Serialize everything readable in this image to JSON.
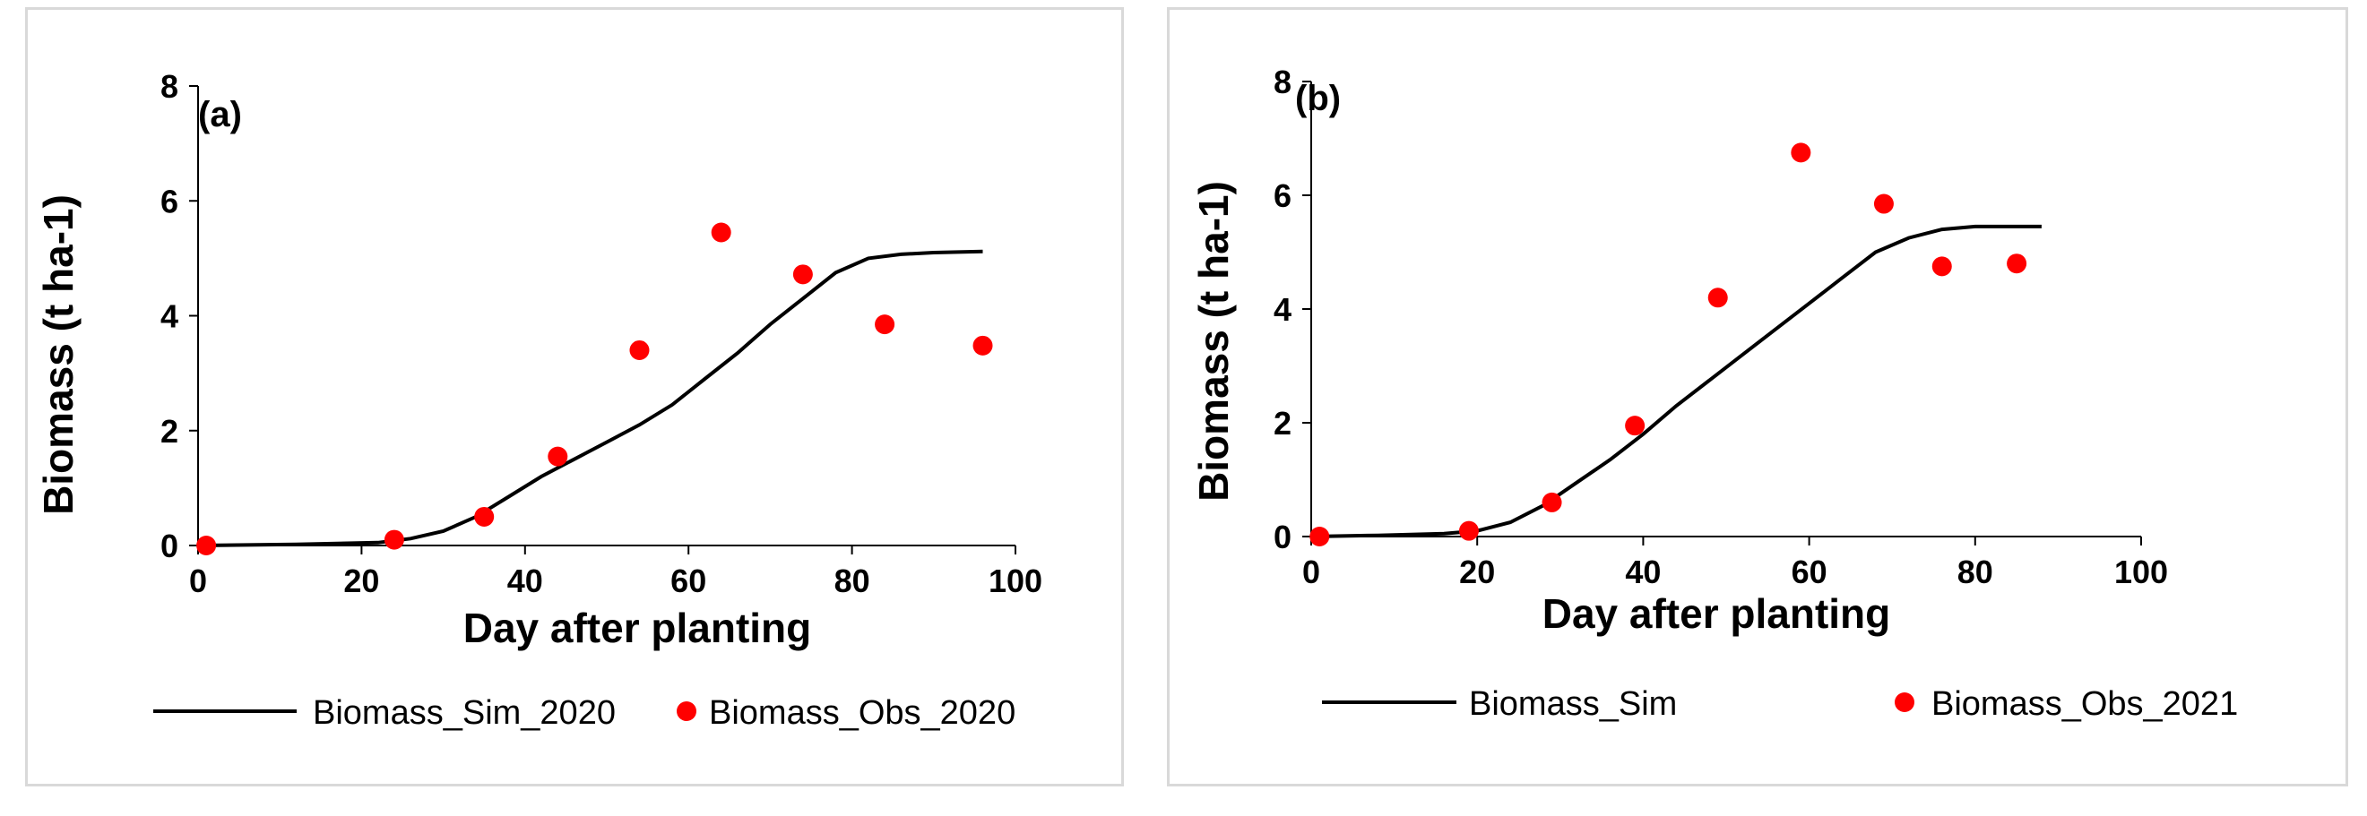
{
  "chart_data": [
    {
      "type": "line",
      "panel_label": "(a)",
      "xlabel": "Day after planting",
      "ylabel": "Biomass (t ha-1)",
      "xlim": [
        0,
        100
      ],
      "ylim": [
        0,
        8
      ],
      "xticks": [
        0,
        20,
        40,
        60,
        80,
        100
      ],
      "yticks": [
        0,
        2,
        4,
        6,
        8
      ],
      "grid": false,
      "legend_position": "bottom",
      "series": [
        {
          "name": "Biomass_Sim_2020",
          "kind": "line",
          "color": "#000000",
          "x": [
            0,
            12,
            22,
            26,
            30,
            34,
            38,
            42,
            46,
            50,
            54,
            58,
            62,
            66,
            70,
            74,
            78,
            82,
            86,
            90,
            96
          ],
          "y": [
            0,
            0.02,
            0.05,
            0.12,
            0.25,
            0.5,
            0.85,
            1.2,
            1.5,
            1.8,
            2.1,
            2.45,
            2.9,
            3.35,
            3.85,
            4.3,
            4.75,
            5.0,
            5.07,
            5.1,
            5.12
          ]
        },
        {
          "name": "Biomass_Obs_2020",
          "kind": "scatter",
          "color": "#ff0000",
          "x": [
            1,
            24,
            35,
            44,
            54,
            64,
            74,
            84,
            96
          ],
          "y": [
            0.0,
            0.1,
            0.5,
            1.55,
            3.4,
            5.45,
            4.72,
            3.85,
            3.48
          ]
        }
      ]
    },
    {
      "type": "line",
      "panel_label": "(b)",
      "xlabel": "Day after planting",
      "ylabel": "Biomass (t ha-1)",
      "xlim": [
        0,
        100
      ],
      "ylim": [
        0,
        8
      ],
      "xticks": [
        0,
        20,
        40,
        60,
        80,
        100
      ],
      "yticks": [
        0,
        2,
        4,
        6,
        8
      ],
      "grid": false,
      "legend_position": "bottom",
      "series": [
        {
          "name": "Biomass_Sim",
          "kind": "line",
          "color": "#000000",
          "x": [
            0,
            8,
            16,
            20,
            24,
            28,
            32,
            36,
            40,
            44,
            48,
            52,
            56,
            60,
            64,
            68,
            72,
            76,
            80,
            84,
            88
          ],
          "y": [
            0,
            0.02,
            0.05,
            0.1,
            0.25,
            0.55,
            0.95,
            1.35,
            1.8,
            2.3,
            2.75,
            3.2,
            3.65,
            4.1,
            4.55,
            5.0,
            5.25,
            5.4,
            5.45,
            5.45,
            5.45
          ]
        },
        {
          "name": "Biomass_Obs_2021",
          "kind": "scatter",
          "color": "#ff0000",
          "x": [
            1,
            19,
            29,
            39,
            49,
            59,
            69,
            76,
            85
          ],
          "y": [
            0.0,
            0.1,
            0.6,
            1.95,
            4.2,
            6.75,
            5.85,
            4.75,
            4.8
          ]
        }
      ]
    }
  ]
}
